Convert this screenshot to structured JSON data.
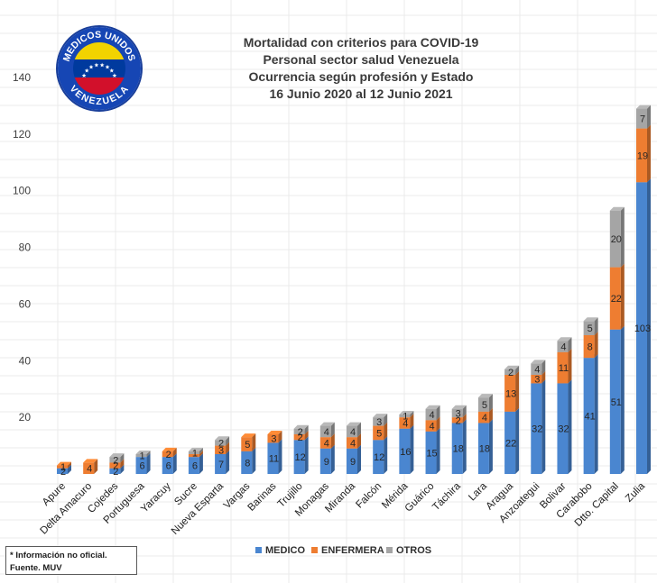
{
  "logo": {
    "text_top": "MEDICOS UNIDOS",
    "text_bottom": "VENEZUELA",
    "colors": [
      "#f2d300",
      "#003a9e",
      "#d2102b"
    ]
  },
  "notes": {
    "line1": "* Información no oficial.",
    "line2": "Fuente. MUV"
  },
  "chart_data": {
    "type": "bar",
    "stacked": true,
    "title": [
      "Mortalidad con criterios para COVID-19",
      "Personal sector salud Venezuela",
      "Ocurrencia según profesión y Estado",
      "16 Junio 2020 al 12 Junio 2021"
    ],
    "categories": [
      "Apure",
      "Delta Amacuro",
      "Cojedes",
      "Portuguesa",
      "Yaracuy",
      "Sucre",
      "Nueva Esparta",
      "Vargas",
      "Barinas",
      "Trujillo",
      "Monagas",
      "Miranda",
      "Falcón",
      "Mérida",
      "Guárico",
      "Táchira",
      "Lara",
      "Aragua",
      "Anzoategui",
      "Bolivar",
      "Carabobo",
      "Dtto. Capital",
      "Zulia"
    ],
    "series": [
      {
        "name": "MEDICO",
        "color": "#4a86d0",
        "values": [
          2,
          0,
          2,
          6,
          6,
          6,
          7,
          8,
          11,
          12,
          9,
          9,
          12,
          16,
          15,
          18,
          18,
          22,
          32,
          32,
          41,
          51,
          103
        ],
        "labels": [
          "2",
          "",
          "2",
          "6",
          "6",
          "6",
          "7",
          "8",
          "11",
          "12",
          "9",
          "9",
          "12",
          "16",
          "15",
          "18",
          "18",
          "22",
          "32",
          "32",
          "41",
          "51",
          "103"
        ]
      },
      {
        "name": "ENFERMERA",
        "color": "#ee7d31",
        "values": [
          1,
          4,
          2,
          0,
          2,
          1,
          3,
          5,
          3,
          2,
          4,
          4,
          5,
          4,
          4,
          2,
          4,
          13,
          3,
          11,
          8,
          22,
          19
        ],
        "labels": [
          "1",
          "4",
          "2",
          "",
          "2",
          "",
          "3",
          "5",
          "3",
          "2",
          "4",
          "4",
          "5",
          "4",
          "4",
          "2",
          "4",
          "13",
          "3",
          "11",
          "8",
          "22",
          "19"
        ]
      },
      {
        "name": "OTROS",
        "color": "#a5a5a5",
        "values": [
          0,
          0,
          2,
          1,
          0,
          1,
          2,
          0,
          0,
          2,
          4,
          4,
          3,
          1,
          4,
          3,
          5,
          2,
          4,
          4,
          5,
          20,
          7
        ],
        "labels": [
          "",
          "",
          "2",
          "1",
          "",
          "1",
          "2",
          "",
          "",
          "2",
          "4",
          "4",
          "3",
          "1",
          "4",
          "3",
          "5",
          "2",
          "4",
          "4",
          "5",
          "20",
          "7"
        ]
      }
    ],
    "ylim": [
      0,
      140
    ],
    "yticks": [
      "",
      "20",
      "40",
      "60",
      "80",
      "100",
      "120",
      "140"
    ],
    "ytick_values": [
      0,
      20,
      40,
      60,
      80,
      100,
      120,
      140
    ],
    "grid": false,
    "legend_position": "bottom"
  }
}
